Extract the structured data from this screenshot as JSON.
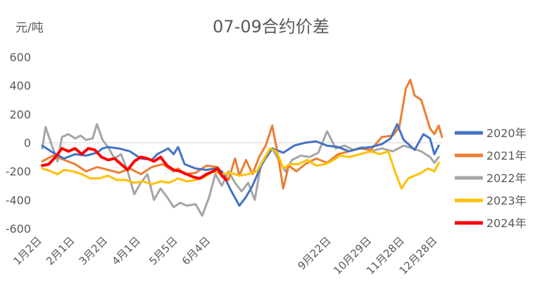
{
  "chart_data": {
    "type": "line",
    "title": "07-09合约价差",
    "ylabel": "元/吨",
    "xlabel": "",
    "ylim": [
      -600,
      600
    ],
    "yticks": [
      600,
      400,
      200,
      0,
      -200,
      -400,
      -600
    ],
    "grid": false,
    "legend_position": "right",
    "x_tick_labels": [
      "1月2日",
      "2月1日",
      "3月2日",
      "4月1日",
      "5月5日",
      "6月4日",
      "9月22日",
      "10月29日",
      "11月28日",
      "12月28日"
    ],
    "x_tick_days": [
      0,
      30,
      60,
      90,
      124,
      154,
      264,
      301,
      331,
      361
    ],
    "x_range_days": [
      0,
      365
    ],
    "series": [
      {
        "name": "2020年",
        "color": "#4472c4",
        "points": [
          [
            0,
            -20
          ],
          [
            10,
            -70
          ],
          [
            20,
            -110
          ],
          [
            30,
            -80
          ],
          [
            40,
            -90
          ],
          [
            50,
            -70
          ],
          [
            55,
            -40
          ],
          [
            60,
            -30
          ],
          [
            70,
            -40
          ],
          [
            80,
            -60
          ],
          [
            90,
            -110
          ],
          [
            100,
            -120
          ],
          [
            105,
            -80
          ],
          [
            110,
            -60
          ],
          [
            115,
            -40
          ],
          [
            120,
            -80
          ],
          [
            124,
            -30
          ],
          [
            130,
            -150
          ],
          [
            140,
            -180
          ],
          [
            150,
            -190
          ],
          [
            158,
            -180
          ],
          [
            164,
            -200
          ],
          [
            172,
            -330
          ],
          [
            180,
            -440
          ],
          [
            186,
            -380
          ],
          [
            192,
            -300
          ],
          [
            200,
            -160
          ],
          [
            206,
            -80
          ],
          [
            210,
            -40
          ],
          [
            220,
            -70
          ],
          [
            230,
            -20
          ],
          [
            240,
            0
          ],
          [
            250,
            10
          ],
          [
            260,
            -20
          ],
          [
            270,
            -30
          ],
          [
            280,
            -60
          ],
          [
            290,
            -40
          ],
          [
            300,
            -30
          ],
          [
            310,
            -10
          ],
          [
            318,
            30
          ],
          [
            324,
            130
          ],
          [
            330,
            20
          ],
          [
            340,
            -50
          ],
          [
            348,
            60
          ],
          [
            354,
            30
          ],
          [
            358,
            -80
          ],
          [
            362,
            -20
          ]
        ]
      },
      {
        "name": "2021年",
        "color": "#ed7d31",
        "points": [
          [
            0,
            -130
          ],
          [
            10,
            -90
          ],
          [
            20,
            -120
          ],
          [
            30,
            -150
          ],
          [
            40,
            -200
          ],
          [
            50,
            -170
          ],
          [
            60,
            -190
          ],
          [
            70,
            -210
          ],
          [
            80,
            -180
          ],
          [
            90,
            -220
          ],
          [
            100,
            -170
          ],
          [
            110,
            -150
          ],
          [
            120,
            -200
          ],
          [
            124,
            -180
          ],
          [
            130,
            -220
          ],
          [
            140,
            -210
          ],
          [
            150,
            -160
          ],
          [
            160,
            -170
          ],
          [
            170,
            -260
          ],
          [
            176,
            -110
          ],
          [
            180,
            -230
          ],
          [
            186,
            -120
          ],
          [
            192,
            -220
          ],
          [
            198,
            -100
          ],
          [
            204,
            -20
          ],
          [
            210,
            120
          ],
          [
            215,
            -80
          ],
          [
            220,
            -320
          ],
          [
            225,
            -160
          ],
          [
            232,
            -200
          ],
          [
            240,
            -150
          ],
          [
            250,
            -110
          ],
          [
            260,
            -140
          ],
          [
            270,
            -80
          ],
          [
            280,
            -60
          ],
          [
            290,
            -40
          ],
          [
            300,
            -50
          ],
          [
            310,
            40
          ],
          [
            320,
            50
          ],
          [
            326,
            110
          ],
          [
            332,
            380
          ],
          [
            336,
            440
          ],
          [
            340,
            330
          ],
          [
            346,
            300
          ],
          [
            350,
            200
          ],
          [
            354,
            100
          ],
          [
            358,
            60
          ],
          [
            362,
            120
          ],
          [
            365,
            40
          ]
        ]
      },
      {
        "name": "2022年",
        "color": "#a5a5a5",
        "points": [
          [
            0,
            -40
          ],
          [
            3,
            110
          ],
          [
            8,
            0
          ],
          [
            14,
            -130
          ],
          [
            18,
            40
          ],
          [
            24,
            60
          ],
          [
            30,
            30
          ],
          [
            35,
            50
          ],
          [
            40,
            20
          ],
          [
            46,
            30
          ],
          [
            50,
            130
          ],
          [
            55,
            20
          ],
          [
            60,
            -30
          ],
          [
            66,
            -110
          ],
          [
            72,
            -80
          ],
          [
            78,
            -200
          ],
          [
            84,
            -360
          ],
          [
            90,
            -280
          ],
          [
            96,
            -220
          ],
          [
            102,
            -400
          ],
          [
            108,
            -320
          ],
          [
            114,
            -380
          ],
          [
            120,
            -450
          ],
          [
            126,
            -420
          ],
          [
            132,
            -440
          ],
          [
            140,
            -430
          ],
          [
            146,
            -510
          ],
          [
            152,
            -390
          ],
          [
            158,
            -220
          ],
          [
            164,
            -300
          ],
          [
            170,
            -200
          ],
          [
            176,
            -280
          ],
          [
            182,
            -340
          ],
          [
            188,
            -280
          ],
          [
            194,
            -400
          ],
          [
            200,
            -140
          ],
          [
            206,
            -90
          ],
          [
            210,
            -40
          ],
          [
            216,
            -120
          ],
          [
            222,
            -200
          ],
          [
            228,
            -120
          ],
          [
            236,
            -90
          ],
          [
            244,
            -100
          ],
          [
            252,
            -70
          ],
          [
            260,
            80
          ],
          [
            268,
            -40
          ],
          [
            276,
            -20
          ],
          [
            284,
            -50
          ],
          [
            292,
            -30
          ],
          [
            300,
            -60
          ],
          [
            310,
            -40
          ],
          [
            320,
            -60
          ],
          [
            330,
            -20
          ],
          [
            338,
            -40
          ],
          [
            346,
            -60
          ],
          [
            354,
            -100
          ],
          [
            358,
            -140
          ],
          [
            362,
            -100
          ]
        ]
      },
      {
        "name": "2023年",
        "color": "#ffc000",
        "points": [
          [
            0,
            -180
          ],
          [
            8,
            -200
          ],
          [
            14,
            -220
          ],
          [
            20,
            -190
          ],
          [
            28,
            -200
          ],
          [
            36,
            -220
          ],
          [
            44,
            -250
          ],
          [
            52,
            -250
          ],
          [
            60,
            -230
          ],
          [
            68,
            -260
          ],
          [
            76,
            -260
          ],
          [
            84,
            -280
          ],
          [
            92,
            -270
          ],
          [
            100,
            -290
          ],
          [
            108,
            -270
          ],
          [
            116,
            -280
          ],
          [
            124,
            -250
          ],
          [
            132,
            -270
          ],
          [
            140,
            -260
          ],
          [
            148,
            -240
          ],
          [
            156,
            -200
          ],
          [
            164,
            -220
          ],
          [
            172,
            -210
          ],
          [
            180,
            -230
          ],
          [
            188,
            -220
          ],
          [
            196,
            -200
          ],
          [
            202,
            -120
          ],
          [
            208,
            -40
          ],
          [
            214,
            -60
          ],
          [
            220,
            -180
          ],
          [
            226,
            -150
          ],
          [
            234,
            -150
          ],
          [
            242,
            -120
          ],
          [
            250,
            -160
          ],
          [
            258,
            -150
          ],
          [
            264,
            -130
          ],
          [
            272,
            -90
          ],
          [
            280,
            -100
          ],
          [
            290,
            -80
          ],
          [
            300,
            -60
          ],
          [
            308,
            -80
          ],
          [
            316,
            -60
          ],
          [
            322,
            -200
          ],
          [
            328,
            -320
          ],
          [
            334,
            -250
          ],
          [
            340,
            -230
          ],
          [
            346,
            -210
          ],
          [
            352,
            -180
          ],
          [
            358,
            -200
          ],
          [
            362,
            -140
          ]
        ]
      },
      {
        "name": "2024年",
        "color": "#ff0000",
        "points": [
          [
            0,
            -160
          ],
          [
            6,
            -150
          ],
          [
            12,
            -100
          ],
          [
            18,
            -40
          ],
          [
            24,
            -60
          ],
          [
            30,
            -40
          ],
          [
            36,
            -80
          ],
          [
            42,
            -40
          ],
          [
            48,
            -50
          ],
          [
            54,
            -100
          ],
          [
            60,
            -120
          ],
          [
            66,
            -110
          ],
          [
            72,
            -150
          ],
          [
            78,
            -190
          ],
          [
            84,
            -130
          ],
          [
            90,
            -100
          ],
          [
            96,
            -110
          ],
          [
            102,
            -130
          ],
          [
            108,
            -100
          ],
          [
            114,
            -160
          ],
          [
            120,
            -190
          ],
          [
            126,
            -200
          ],
          [
            132,
            -220
          ],
          [
            138,
            -240
          ],
          [
            144,
            -250
          ],
          [
            150,
            -220
          ],
          [
            156,
            -200
          ],
          [
            160,
            -180
          ],
          [
            164,
            -230
          ],
          [
            168,
            -260
          ]
        ]
      }
    ]
  }
}
